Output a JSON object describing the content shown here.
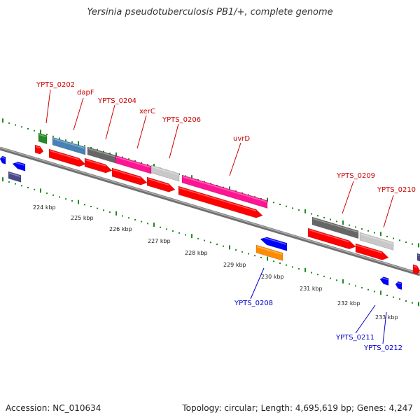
{
  "title": "Yersinia pseudotuberculosis PB1/+, complete genome",
  "footer": {
    "accession": "Accession: NC_010634",
    "summary": "Topology: circular; Length: 4,695,619 bp; Genes: 4,247"
  },
  "scale_labels": [
    "224 kbp",
    "225 kbp",
    "226 kbp",
    "227 kbp",
    "228 kbp",
    "229 kbp",
    "230 kbp",
    "231 kbp",
    "232 kbp",
    "233 kbp"
  ],
  "gene_labels_top": [
    "YPTS_0202",
    "dapF",
    "YPTS_0204",
    "xerC",
    "YPTS_0206",
    "uvrD",
    "YPTS_0209",
    "YPTS_0210"
  ],
  "gene_labels_bottom": [
    "YPTS_0208",
    "YPTS_0211",
    "YPTS_0212"
  ],
  "colors": {
    "cds": "#ff0000",
    "green": "#228b22",
    "steelblue": "#4682b4",
    "darkgray": "#666666",
    "magenta": "#ff1493",
    "lightgray": "#c8c8c8",
    "blue": "#0000ff",
    "orange": "#ff8c00",
    "slate": "#4a4a8a",
    "backbone": "#808080",
    "dots": "#228b22",
    "label_top": "#cc0000",
    "label_bottom": "#0000cc"
  }
}
